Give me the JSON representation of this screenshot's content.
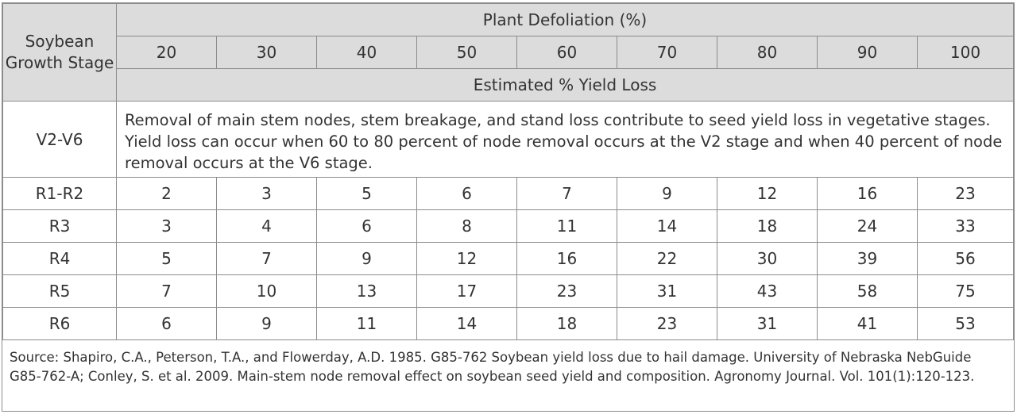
{
  "table": {
    "stage_header": "Soybean Growth Stage",
    "defoliation_header": "Plant Defoliation (%)",
    "defoliation_levels": [
      "20",
      "30",
      "40",
      "50",
      "60",
      "70",
      "80",
      "90",
      "100"
    ],
    "yield_loss_header": "Estimated % Yield Loss",
    "vegetative": {
      "stage": "V2-V6",
      "note": "Removal of main stem nodes, stem breakage, and stand loss contribute to seed yield loss in vegetative stages. Yield loss can occur when 60 to 80 percent of node removal occurs at the V2 stage and when 40 percent of node removal occurs at the V6 stage."
    },
    "rows": [
      {
        "stage": "R1-R2",
        "values": [
          "2",
          "3",
          "5",
          "6",
          "7",
          "9",
          "12",
          "16",
          "23"
        ]
      },
      {
        "stage": "R3",
        "values": [
          "3",
          "4",
          "6",
          "8",
          "11",
          "14",
          "18",
          "24",
          "33"
        ]
      },
      {
        "stage": "R4",
        "values": [
          "5",
          "7",
          "9",
          "12",
          "16",
          "22",
          "30",
          "39",
          "56"
        ]
      },
      {
        "stage": "R5",
        "values": [
          "7",
          "10",
          "13",
          "17",
          "23",
          "31",
          "43",
          "58",
          "75"
        ]
      },
      {
        "stage": "R6",
        "values": [
          "6",
          "9",
          "11",
          "14",
          "18",
          "23",
          "31",
          "41",
          "53"
        ]
      }
    ]
  },
  "source": "Source: Shapiro, C.A., Peterson, T.A., and Flowerday, A.D. 1985. G85-762 Soybean yield loss due to hail damage. University of Nebraska NebGuide G85-762-A; Conley, S. et al. 2009. Main-stem node removal effect on soybean seed yield and composition. Agronomy Journal. Vol. 101(1):120-123."
}
